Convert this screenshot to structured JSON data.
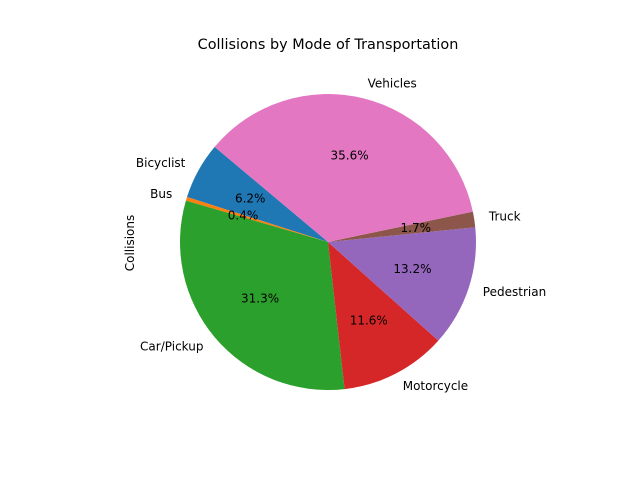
{
  "chart_data": {
    "type": "pie",
    "title": "Collisions by Mode of Transportation",
    "ylabel": "Collisions",
    "categories": [
      "Bicyclist",
      "Bus",
      "Car/Pickup",
      "Motorcycle",
      "Pedestrian",
      "Truck",
      "Vehicles"
    ],
    "values": [
      6.2,
      0.4,
      31.3,
      11.6,
      13.2,
      1.7,
      35.6
    ],
    "value_labels": [
      "6.2%",
      "0.4%",
      "31.3%",
      "11.6%",
      "13.2%",
      "1.7%",
      "35.6%"
    ],
    "value_format": "percent",
    "start_angle_deg": 140,
    "direction": "counterclockwise",
    "colors": [
      "#1f77b4",
      "#ff7f0e",
      "#2ca02c",
      "#d62728",
      "#9467bd",
      "#8c564b",
      "#e377c2"
    ],
    "legend": "none",
    "grid": false
  }
}
